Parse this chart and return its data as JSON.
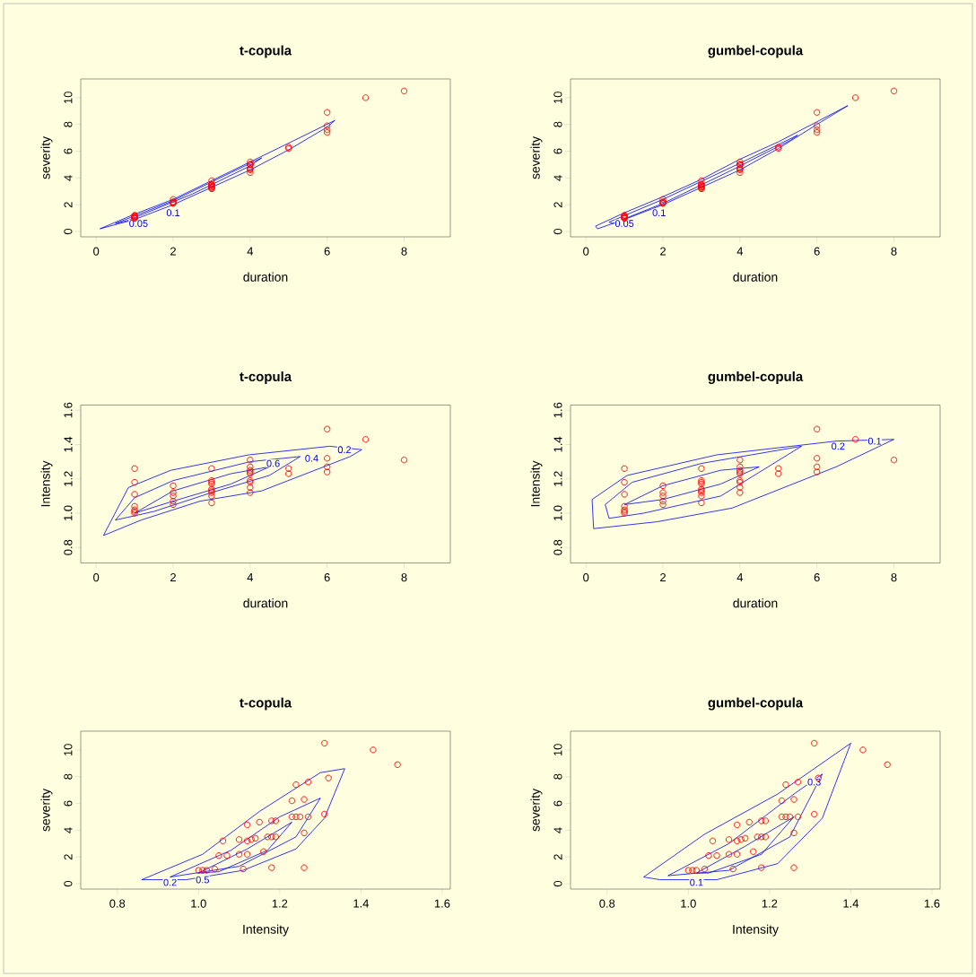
{
  "chart_data": [
    {
      "type": "scatter",
      "title": "t-copula",
      "xlabel": "duration",
      "ylabel": "severity",
      "xlim": [
        -0.4,
        9.2
      ],
      "ylim": [
        -0.4,
        11.4
      ],
      "xticks": [
        0,
        2,
        4,
        6,
        8
      ],
      "yticks": [
        0,
        2,
        4,
        6,
        8,
        10
      ],
      "annotations": [
        {
          "text": "0.05",
          "x": 1.1,
          "y": 0.6
        },
        {
          "text": "0.1",
          "x": 2.0,
          "y": 1.4
        }
      ],
      "series": [
        {
          "type": "line",
          "color": "#0000ff",
          "x": [
            0.1,
            1,
            2,
            3,
            4,
            5,
            6.2
          ],
          "values": [
            0.2,
            1.3,
            2.4,
            3.8,
            5.2,
            6.6,
            8.3
          ]
        },
        {
          "type": "line",
          "color": "#0000ff",
          "x": [
            0.1,
            1,
            2,
            3,
            4,
            5,
            6,
            6.2
          ],
          "values": [
            0.2,
            0.9,
            2.0,
            3.3,
            4.6,
            6.1,
            7.8,
            8.3
          ]
        },
        {
          "type": "line",
          "color": "#0000ff",
          "x": [
            0.5,
            2,
            3.5,
            4.3
          ],
          "values": [
            0.6,
            2.3,
            4.4,
            5.5
          ]
        },
        {
          "type": "line",
          "color": "#0000ff",
          "x": [
            0.5,
            0.8,
            2.5,
            4,
            4.3
          ],
          "values": [
            0.6,
            0.8,
            2.8,
            4.9,
            5.5
          ]
        },
        {
          "color": "#ff0000",
          "marker": "circle",
          "x": [
            8,
            7,
            6,
            6,
            6,
            6,
            5,
            5,
            4,
            4,
            4,
            4,
            4,
            4,
            4,
            4,
            4,
            3,
            3,
            3,
            3,
            3,
            3,
            3,
            3,
            3,
            2,
            2,
            2,
            2,
            2,
            1,
            1,
            1,
            1,
            1,
            1,
            1
          ],
          "values": [
            10.5,
            10.0,
            8.9,
            7.9,
            7.6,
            7.4,
            6.3,
            6.2,
            5.2,
            5.0,
            5.0,
            5.0,
            5.0,
            4.7,
            4.7,
            4.6,
            4.4,
            3.8,
            3.5,
            3.5,
            3.5,
            3.4,
            3.3,
            3.3,
            3.2,
            3.2,
            2.4,
            2.2,
            2.2,
            2.1,
            2.1,
            1.2,
            1.2,
            1.1,
            1.1,
            1.0,
            1.0,
            1.0
          ]
        }
      ]
    },
    {
      "type": "scatter",
      "title": "gumbel-copula",
      "xlabel": "duration",
      "ylabel": "severity",
      "xlim": [
        -0.4,
        9.2
      ],
      "ylim": [
        -0.4,
        11.4
      ],
      "xticks": [
        0,
        2,
        4,
        6,
        8
      ],
      "yticks": [
        0,
        2,
        4,
        6,
        8,
        10
      ],
      "annotations": [
        {
          "text": "0.05",
          "x": 1.0,
          "y": 0.6
        },
        {
          "text": "0.1",
          "x": 1.9,
          "y": 1.4
        }
      ],
      "series": [
        {
          "type": "line",
          "color": "#0000ff",
          "x": [
            0.25,
            1,
            2,
            3,
            4,
            5,
            6,
            6.8
          ],
          "values": [
            0.4,
            1.4,
            2.6,
            3.9,
            5.4,
            6.7,
            8.2,
            9.4
          ]
        },
        {
          "type": "line",
          "color": "#0000ff",
          "x": [
            0.25,
            0.3,
            1,
            2,
            3,
            4,
            5,
            6,
            6.8
          ],
          "values": [
            0.4,
            0.2,
            0.9,
            2.0,
            3.3,
            4.6,
            6.2,
            8.0,
            9.4
          ]
        },
        {
          "type": "line",
          "color": "#0000ff",
          "x": [
            0.6,
            2,
            4,
            5.5
          ],
          "values": [
            0.7,
            2.4,
            5.1,
            7.2
          ]
        },
        {
          "type": "line",
          "color": "#0000ff",
          "x": [
            0.6,
            0.7,
            2,
            3.8,
            5.3,
            5.5
          ],
          "values": [
            0.7,
            0.6,
            2.1,
            4.6,
            6.8,
            7.2
          ]
        },
        {
          "color": "#ff0000",
          "marker": "circle",
          "x": [
            8,
            7,
            6,
            6,
            6,
            6,
            5,
            5,
            4,
            4,
            4,
            4,
            4,
            4,
            4,
            4,
            4,
            3,
            3,
            3,
            3,
            3,
            3,
            3,
            3,
            3,
            2,
            2,
            2,
            2,
            2,
            1,
            1,
            1,
            1,
            1,
            1,
            1
          ],
          "values": [
            10.5,
            10.0,
            8.9,
            7.9,
            7.6,
            7.4,
            6.3,
            6.2,
            5.2,
            5.0,
            5.0,
            5.0,
            5.0,
            4.7,
            4.7,
            4.6,
            4.4,
            3.8,
            3.5,
            3.5,
            3.5,
            3.4,
            3.3,
            3.3,
            3.2,
            3.2,
            2.4,
            2.2,
            2.2,
            2.1,
            2.1,
            1.2,
            1.2,
            1.1,
            1.1,
            1.0,
            1.0,
            1.0
          ]
        }
      ]
    },
    {
      "type": "scatter",
      "title": "t-copula",
      "xlabel": "duration",
      "ylabel": "Intensity",
      "xlim": [
        -0.4,
        9.2
      ],
      "ylim": [
        0.71,
        1.63
      ],
      "xticks": [
        0,
        2,
        4,
        6,
        8
      ],
      "yticks": [
        0.8,
        {
          "value": 1,
          "label": "1.0"
        },
        1.2,
        1.4,
        1.6
      ],
      "annotations": [
        {
          "text": "0.2",
          "x": 6.45,
          "y": 1.37
        },
        {
          "text": "0.4",
          "x": 5.6,
          "y": 1.32
        },
        {
          "text": "0.6",
          "x": 4.6,
          "y": 1.29
        }
      ],
      "series": [
        {
          "type": "line",
          "color": "#0000ff",
          "x": [
            0.19,
            0.84,
            1.94,
            3.97,
            6.07,
            6.9
          ],
          "values": [
            0.87,
            1.15,
            1.25,
            1.34,
            1.39,
            1.37
          ]
        },
        {
          "type": "line",
          "color": "#0000ff",
          "x": [
            0.19,
            1.17,
            2.7,
            4.3,
            6.6,
            6.9
          ],
          "values": [
            0.87,
            0.96,
            1.07,
            1.13,
            1.33,
            1.37
          ]
        },
        {
          "type": "line",
          "color": "#0000ff",
          "x": [
            0.5,
            1.0,
            2,
            4,
            5.3
          ],
          "values": [
            0.96,
            1.09,
            1.19,
            1.3,
            1.33
          ]
        },
        {
          "type": "line",
          "color": "#0000ff",
          "x": [
            0.5,
            1.5,
            3,
            4.5,
            5.3
          ],
          "values": [
            0.96,
            1.01,
            1.12,
            1.22,
            1.33
          ]
        },
        {
          "type": "line",
          "color": "#0000ff",
          "x": [
            1.0,
            2,
            3.5,
            4.5
          ],
          "values": [
            1.0,
            1.13,
            1.23,
            1.27
          ]
        },
        {
          "type": "line",
          "color": "#0000ff",
          "x": [
            1.0,
            2,
            3.5,
            4.5
          ],
          "values": [
            1.0,
            1.07,
            1.17,
            1.27
          ]
        },
        {
          "color": "#ff0000",
          "marker": "circle",
          "x": [
            8,
            7,
            6,
            6,
            6,
            6,
            5,
            5,
            4,
            4,
            4,
            4,
            4,
            4,
            4,
            4,
            4,
            3,
            3,
            3,
            3,
            3,
            3,
            3,
            3,
            3,
            2,
            2,
            2,
            2,
            2,
            1,
            1,
            1,
            1,
            1,
            1,
            1
          ],
          "values": [
            1.31,
            1.43,
            1.49,
            1.32,
            1.27,
            1.24,
            1.26,
            1.23,
            1.31,
            1.27,
            1.25,
            1.24,
            1.23,
            1.19,
            1.18,
            1.15,
            1.12,
            1.26,
            1.19,
            1.18,
            1.17,
            1.14,
            1.13,
            1.1,
            1.12,
            1.06,
            1.16,
            1.12,
            1.1,
            1.07,
            1.05,
            1.26,
            1.18,
            1.11,
            1.04,
            1.02,
            1.01,
            1.0
          ]
        }
      ]
    },
    {
      "type": "scatter",
      "title": "gumbel-copula",
      "xlabel": "duration",
      "ylabel": "Intensity",
      "xlim": [
        -0.4,
        9.2
      ],
      "ylim": [
        0.71,
        1.63
      ],
      "xticks": [
        0,
        2,
        4,
        6,
        8
      ],
      "yticks": [
        0.8,
        {
          "value": 1,
          "label": "1.0"
        },
        1.2,
        1.4,
        1.6
      ],
      "annotations": [
        {
          "text": "0.1",
          "x": 7.5,
          "y": 1.42
        },
        {
          "text": "0.2",
          "x": 6.55,
          "y": 1.39
        }
      ],
      "series": [
        {
          "type": "line",
          "color": "#0000ff",
          "x": [
            0.16,
            1.07,
            3.4,
            6.5,
            8.0
          ],
          "values": [
            1.08,
            1.22,
            1.34,
            1.42,
            1.43
          ]
        },
        {
          "type": "line",
          "color": "#0000ff",
          "x": [
            0.16,
            0.2,
            1.85,
            3.8,
            6.5,
            8.0
          ],
          "values": [
            1.08,
            0.91,
            0.95,
            1.03,
            1.27,
            1.43
          ]
        },
        {
          "type": "line",
          "color": "#0000ff",
          "x": [
            0.5,
            1.2,
            3,
            5.6
          ],
          "values": [
            1.05,
            1.18,
            1.29,
            1.39
          ]
        },
        {
          "type": "line",
          "color": "#0000ff",
          "x": [
            0.5,
            0.6,
            1.5,
            3.5,
            5.6
          ],
          "values": [
            1.05,
            0.97,
            1.0,
            1.1,
            1.39
          ]
        },
        {
          "type": "line",
          "color": "#0000ff",
          "x": [
            1.0,
            2,
            3.5,
            4.5
          ],
          "values": [
            1.05,
            1.16,
            1.25,
            1.27
          ]
        },
        {
          "type": "line",
          "color": "#0000ff",
          "x": [
            1.0,
            2,
            3.5,
            4.5
          ],
          "values": [
            1.05,
            1.08,
            1.17,
            1.27
          ]
        },
        {
          "color": "#ff0000",
          "marker": "circle",
          "x": [
            8,
            7,
            6,
            6,
            6,
            6,
            5,
            5,
            4,
            4,
            4,
            4,
            4,
            4,
            4,
            4,
            4,
            3,
            3,
            3,
            3,
            3,
            3,
            3,
            3,
            3,
            2,
            2,
            2,
            2,
            2,
            1,
            1,
            1,
            1,
            1,
            1,
            1
          ],
          "values": [
            1.31,
            1.43,
            1.49,
            1.32,
            1.27,
            1.24,
            1.26,
            1.23,
            1.31,
            1.27,
            1.25,
            1.24,
            1.23,
            1.19,
            1.18,
            1.15,
            1.12,
            1.26,
            1.19,
            1.18,
            1.17,
            1.14,
            1.13,
            1.1,
            1.12,
            1.06,
            1.16,
            1.12,
            1.1,
            1.07,
            1.05,
            1.26,
            1.18,
            1.11,
            1.04,
            1.02,
            1.01,
            1.0
          ]
        }
      ]
    },
    {
      "type": "scatter",
      "title": "t-copula",
      "xlabel": "Intensity",
      "ylabel": "severity",
      "xlim": [
        0.71,
        1.62
      ],
      "ylim": [
        -0.4,
        11.4
      ],
      "xticks": [
        0.8,
        {
          "value": 1,
          "label": "1.0"
        },
        1.2,
        1.4,
        1.6
      ],
      "yticks": [
        0,
        2,
        4,
        6,
        8,
        10
      ],
      "annotations": [
        {
          "text": "0.2",
          "x": 0.93,
          "y": 0.1
        },
        {
          "text": "0.5",
          "x": 1.01,
          "y": 0.3
        }
      ],
      "series": [
        {
          "type": "line",
          "color": "#0000ff",
          "x": [
            0.86,
            1.01,
            1.15,
            1.3,
            1.36
          ],
          "values": [
            0.3,
            2.2,
            5.4,
            8.3,
            8.6
          ]
        },
        {
          "type": "line",
          "color": "#0000ff",
          "x": [
            0.86,
            0.97,
            1.11,
            1.24,
            1.31,
            1.36
          ],
          "values": [
            0.3,
            0.3,
            1.0,
            2.6,
            4.9,
            8.6
          ]
        },
        {
          "type": "line",
          "color": "#0000ff",
          "x": [
            0.93,
            1.08,
            1.2,
            1.3
          ],
          "values": [
            0.5,
            2.5,
            5.0,
            6.4
          ]
        },
        {
          "type": "line",
          "color": "#0000ff",
          "x": [
            0.93,
            1.1,
            1.24,
            1.3
          ],
          "values": [
            0.5,
            1.3,
            3.5,
            6.4
          ]
        },
        {
          "type": "line",
          "color": "#0000ff",
          "x": [
            1.0,
            1.12,
            1.23
          ],
          "values": [
            0.8,
            2.6,
            4.6
          ]
        },
        {
          "type": "line",
          "color": "#0000ff",
          "x": [
            1.0,
            1.05,
            1.17,
            1.23
          ],
          "values": [
            0.8,
            0.9,
            2.5,
            4.6
          ]
        },
        {
          "color": "#ff0000",
          "marker": "circle",
          "x": [
            1.31,
            1.43,
            1.49,
            1.32,
            1.27,
            1.24,
            1.26,
            1.23,
            1.31,
            1.27,
            1.25,
            1.24,
            1.23,
            1.19,
            1.18,
            1.15,
            1.12,
            1.26,
            1.19,
            1.18,
            1.17,
            1.14,
            1.13,
            1.1,
            1.12,
            1.06,
            1.16,
            1.12,
            1.1,
            1.07,
            1.05,
            1.26,
            1.18,
            1.11,
            1.04,
            1.02,
            1.01,
            1.0
          ],
          "values": [
            10.5,
            10.0,
            8.9,
            7.9,
            7.6,
            7.4,
            6.3,
            6.2,
            5.2,
            5.0,
            5.0,
            5.0,
            5.0,
            4.7,
            4.7,
            4.6,
            4.4,
            3.8,
            3.5,
            3.5,
            3.5,
            3.4,
            3.3,
            3.3,
            3.2,
            3.2,
            2.4,
            2.2,
            2.2,
            2.1,
            2.1,
            1.2,
            1.2,
            1.1,
            1.1,
            1.0,
            1.0,
            1.0
          ]
        }
      ]
    },
    {
      "type": "scatter",
      "title": "gumbel-copula",
      "xlabel": "Intensity",
      "ylabel": "severity",
      "xlim": [
        0.71,
        1.62
      ],
      "ylim": [
        -0.4,
        11.4
      ],
      "xticks": [
        0.8,
        {
          "value": 1,
          "label": "1.0"
        },
        1.2,
        1.4,
        1.6
      ],
      "yticks": [
        0,
        2,
        4,
        6,
        8,
        10
      ],
      "annotations": [
        {
          "text": "0.1",
          "x": 1.02,
          "y": 0.1
        },
        {
          "text": "0.3",
          "x": 1.31,
          "y": 7.6
        }
      ],
      "series": [
        {
          "type": "line",
          "color": "#0000ff",
          "x": [
            0.89,
            1.04,
            1.22,
            1.4
          ],
          "values": [
            0.5,
            3.7,
            6.7,
            10.5
          ]
        },
        {
          "type": "line",
          "color": "#0000ff",
          "x": [
            0.89,
            0.93,
            1.07,
            1.22,
            1.33,
            1.4
          ],
          "values": [
            0.5,
            0.3,
            0.3,
            1.5,
            4.9,
            10.5
          ]
        },
        {
          "type": "line",
          "color": "#0000ff",
          "x": [
            0.95,
            1.1,
            1.26,
            1.33
          ],
          "values": [
            0.6,
            3.0,
            6.7,
            8.2
          ]
        },
        {
          "type": "line",
          "color": "#0000ff",
          "x": [
            0.95,
            1.1,
            1.25,
            1.33
          ],
          "values": [
            0.6,
            1.0,
            3.5,
            8.2
          ]
        },
        {
          "type": "line",
          "color": "#0000ff",
          "x": [
            1.02,
            1.14,
            1.26
          ],
          "values": [
            0.8,
            2.8,
            5.0
          ]
        },
        {
          "type": "line",
          "color": "#0000ff",
          "x": [
            1.02,
            1.05,
            1.18,
            1.26
          ],
          "values": [
            0.8,
            0.8,
            2.2,
            5.0
          ]
        },
        {
          "color": "#ff0000",
          "marker": "circle",
          "x": [
            1.31,
            1.43,
            1.49,
            1.32,
            1.27,
            1.24,
            1.26,
            1.23,
            1.31,
            1.27,
            1.25,
            1.24,
            1.23,
            1.19,
            1.18,
            1.15,
            1.12,
            1.26,
            1.19,
            1.18,
            1.17,
            1.14,
            1.13,
            1.1,
            1.12,
            1.06,
            1.16,
            1.12,
            1.1,
            1.07,
            1.05,
            1.26,
            1.18,
            1.11,
            1.04,
            1.02,
            1.01,
            1.0
          ],
          "values": [
            10.5,
            10.0,
            8.9,
            7.9,
            7.6,
            7.4,
            6.3,
            6.2,
            5.2,
            5.0,
            5.0,
            5.0,
            5.0,
            4.7,
            4.7,
            4.6,
            4.4,
            3.8,
            3.5,
            3.5,
            3.5,
            3.4,
            3.3,
            3.3,
            3.2,
            3.2,
            2.4,
            2.2,
            2.2,
            2.1,
            2.1,
            1.2,
            1.2,
            1.1,
            1.1,
            1.0,
            1.0,
            1.0
          ]
        }
      ]
    }
  ]
}
